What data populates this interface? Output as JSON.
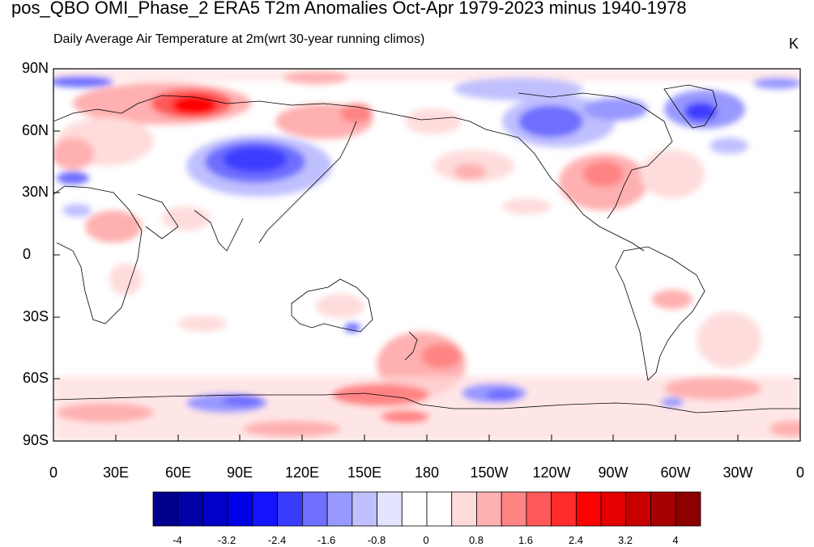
{
  "title": "pos_QBO OMI_Phase_2 ERA5 T2m Anomalies Oct-Apr 1979-2023 minus 1940-1978",
  "subtitle": "Daily Average Air Temperature at 2m",
  "subtitle_extra": "(wrt 30-year running climos)",
  "units": "K",
  "y_axis_labels": [
    "90N",
    "60N",
    "30N",
    "0",
    "30S",
    "60S",
    "90S"
  ],
  "x_axis_labels": [
    "0",
    "30E",
    "60E",
    "90E",
    "120E",
    "150E",
    "180",
    "150W",
    "120W",
    "90W",
    "60W",
    "30W",
    "0"
  ],
  "colorbar": {
    "labels": [
      "-4",
      "-3.2",
      "-2.4",
      "-1.6",
      "-0.8",
      "0",
      "0.8",
      "1.6",
      "2.4",
      "3.2",
      "4"
    ],
    "colors": [
      "#00008c",
      "#0000a8",
      "#0000c8",
      "#0000e8",
      "#1414ff",
      "#3c3cff",
      "#6e6eff",
      "#9898ff",
      "#c0c0ff",
      "#e4e4ff",
      "#ffffff",
      "#ffffff",
      "#ffdcdc",
      "#ffb0b0",
      "#ff8484",
      "#ff5858",
      "#ff2c2c",
      "#ff0000",
      "#e40000",
      "#c80000",
      "#a80000",
      "#8c0000"
    ]
  }
}
